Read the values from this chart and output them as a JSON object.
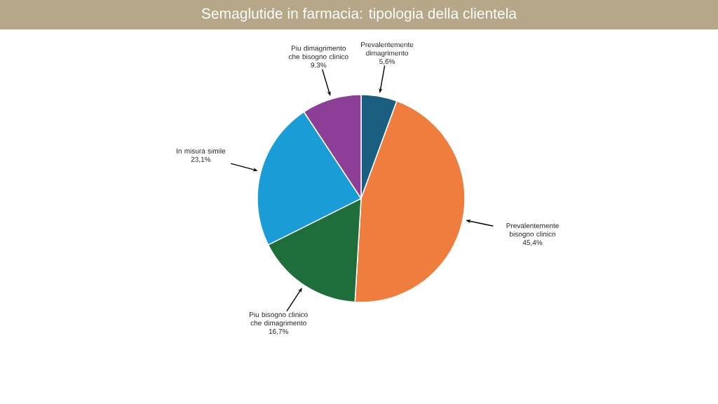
{
  "chart_data": {
    "type": "pie",
    "title": "Semaglutide in farmacia: tipologia della clientela",
    "categories": [
      "Prevalentemente dimagrimento",
      "Prevalentemente bisogno clinico",
      "Piu bisogno clinico che dimagrimento",
      "In misura simile",
      "Piu dimagrimento che bisogno clinico"
    ],
    "values": [
      5.6,
      45.4,
      16.7,
      23.1,
      9.3
    ],
    "value_labels": [
      "5,6%",
      "45,4%",
      "16,7%",
      "23,1%",
      "9,3%"
    ],
    "colors": [
      "#1b5f80",
      "#ee7d3e",
      "#1e6e3b",
      "#1a9dd7",
      "#8d3f98"
    ]
  }
}
